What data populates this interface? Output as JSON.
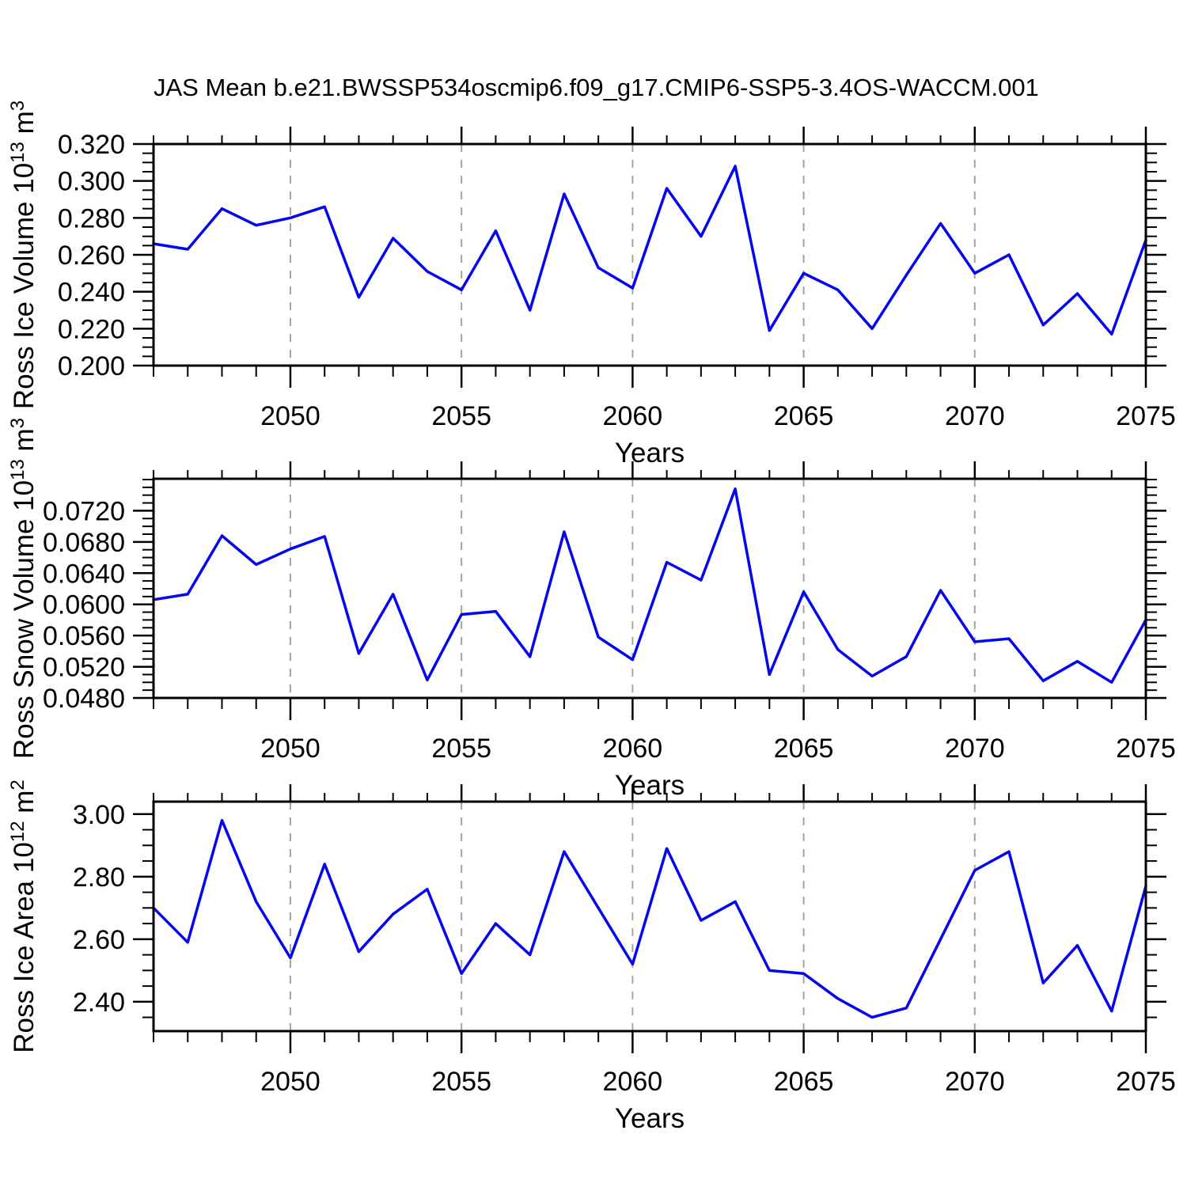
{
  "title": "JAS Mean b.e21.BWSSP534oscmip6.f09_g17.CMIP6-SSP5-3.4OS-WACCM.001",
  "colors": {
    "line": "#0505ee",
    "axis": "#000000",
    "grid": "#a3a3a3",
    "text": "#000000",
    "background": "#ffffff"
  },
  "x_axis": {
    "label": "Years",
    "range": [
      2046,
      2075
    ],
    "major_ticks": [
      2050,
      2055,
      2060,
      2065,
      2070,
      2075
    ],
    "major_tick_labels": [
      "2050",
      "2055",
      "2060",
      "2065",
      "2070",
      "2075"
    ],
    "minor_step": 1,
    "gridline_years": [
      2050,
      2055,
      2060,
      2065,
      2070
    ]
  },
  "chart_data": [
    {
      "type": "line",
      "name": "ross-ice-volume",
      "ylabel_text": "Ross Ice Volume 10¹³ m³",
      "ylabel_segments": [
        {
          "text": "Ross Ice Volume 10"
        },
        {
          "text": "13",
          "sup": true
        },
        {
          "text": " m"
        },
        {
          "text": "3",
          "sup": true
        }
      ],
      "ylim": [
        0.2,
        0.32
      ],
      "ytick_values": [
        0.2,
        0.22,
        0.24,
        0.26,
        0.28,
        0.3,
        0.32
      ],
      "ytick_labels": [
        "0.200",
        "0.220",
        "0.240",
        "0.260",
        "0.280",
        "0.300",
        "0.320"
      ],
      "yminor_step": 0.005,
      "x": [
        2046,
        2047,
        2048,
        2049,
        2050,
        2051,
        2052,
        2053,
        2054,
        2055,
        2056,
        2057,
        2058,
        2059,
        2060,
        2061,
        2062,
        2063,
        2064,
        2065,
        2066,
        2067,
        2068,
        2069,
        2070,
        2071,
        2072,
        2073,
        2074,
        2075
      ],
      "values": [
        0.266,
        0.263,
        0.285,
        0.276,
        0.28,
        0.286,
        0.237,
        0.269,
        0.251,
        0.241,
        0.273,
        0.23,
        0.293,
        0.253,
        0.242,
        0.296,
        0.27,
        0.308,
        0.219,
        0.25,
        0.241,
        0.22,
        0.249,
        0.277,
        0.25,
        0.26,
        0.222,
        0.239,
        0.217,
        0.268
      ]
    },
    {
      "type": "line",
      "name": "ross-snow-volume",
      "ylabel_text": "Ross Snow Volume 10¹³ m³",
      "ylabel_segments": [
        {
          "text": "Ross Snow Volume 10"
        },
        {
          "text": "13",
          "sup": true
        },
        {
          "text": " m"
        },
        {
          "text": "3",
          "sup": true
        }
      ],
      "ylim": [
        0.048,
        0.0761
      ],
      "ytick_values": [
        0.048,
        0.052,
        0.056,
        0.06,
        0.064,
        0.068,
        0.072
      ],
      "ytick_labels": [
        "0.0480",
        "0.0520",
        "0.0560",
        "0.0600",
        "0.0640",
        "0.0680",
        "0.0720"
      ],
      "yminor_step": 0.001,
      "x": [
        2046,
        2047,
        2048,
        2049,
        2050,
        2051,
        2052,
        2053,
        2054,
        2055,
        2056,
        2057,
        2058,
        2059,
        2060,
        2061,
        2062,
        2063,
        2064,
        2065,
        2066,
        2067,
        2068,
        2069,
        2070,
        2071,
        2072,
        2073,
        2074,
        2075
      ],
      "values": [
        0.0606,
        0.0613,
        0.0688,
        0.0651,
        0.0671,
        0.0687,
        0.0537,
        0.0613,
        0.0503,
        0.0587,
        0.0591,
        0.0533,
        0.0693,
        0.0558,
        0.0529,
        0.0654,
        0.0631,
        0.0748,
        0.051,
        0.0616,
        0.0542,
        0.0508,
        0.0533,
        0.0618,
        0.0552,
        0.0556,
        0.0502,
        0.0527,
        0.05,
        0.058
      ]
    },
    {
      "type": "line",
      "name": "ross-ice-area",
      "ylabel_text": "Ross Ice Area 10¹² m²",
      "ylabel_segments": [
        {
          "text": "Ross Ice Area 10"
        },
        {
          "text": "12",
          "sup": true
        },
        {
          "text": " m"
        },
        {
          "text": "2",
          "sup": true
        }
      ],
      "ylim": [
        2.306,
        3.04
      ],
      "ytick_values": [
        2.4,
        2.6,
        2.8,
        3.0
      ],
      "ytick_labels": [
        "2.40",
        "2.60",
        "2.80",
        "3.00"
      ],
      "yminor_step": 0.05,
      "x": [
        2046,
        2047,
        2048,
        2049,
        2050,
        2051,
        2052,
        2053,
        2054,
        2055,
        2056,
        2057,
        2058,
        2059,
        2060,
        2061,
        2062,
        2063,
        2064,
        2065,
        2066,
        2067,
        2068,
        2069,
        2070,
        2071,
        2072,
        2073,
        2074,
        2075
      ],
      "values": [
        2.7,
        2.59,
        2.98,
        2.72,
        2.54,
        2.84,
        2.56,
        2.68,
        2.76,
        2.49,
        2.65,
        2.55,
        2.88,
        2.7,
        2.52,
        2.89,
        2.66,
        2.72,
        2.5,
        2.49,
        2.41,
        2.35,
        2.38,
        2.6,
        2.82,
        2.88,
        2.46,
        2.58,
        2.37,
        2.77
      ]
    }
  ]
}
